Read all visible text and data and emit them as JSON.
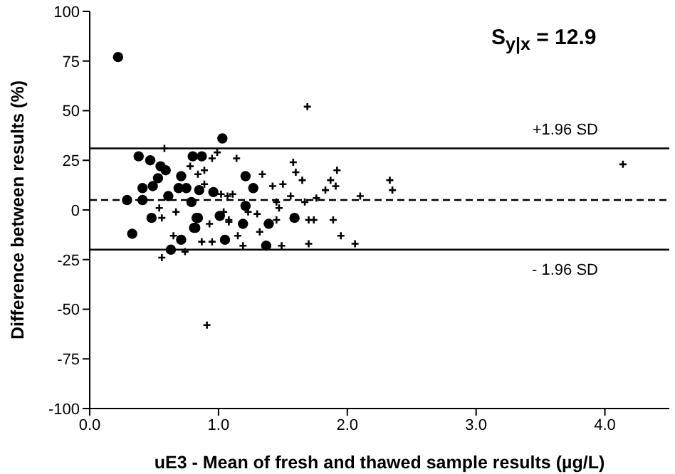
{
  "chart_data": {
    "type": "scatter",
    "xlabel": "uE3 - Mean of fresh and thawed sample results  (µg/L)",
    "ylabel": "Difference between results (%)",
    "annotations": [
      "S$_{y|x}$ = 12.9"
    ],
    "xlim": [
      0,
      4.5
    ],
    "xticks": [
      {
        "value": 0,
        "label": "0.0"
      },
      {
        "value": 1,
        "label": "1.0"
      },
      {
        "value": 2,
        "label": "2.0"
      },
      {
        "value": 3,
        "label": "3.0"
      },
      {
        "value": 4,
        "label": "4.0"
      }
    ],
    "ylim": [
      -100,
      100
    ],
    "yticks": [
      -100,
      -75,
      -50,
      -25,
      0,
      25,
      50,
      75,
      100
    ],
    "ref_lines": [
      {
        "axis": "y",
        "value": 31,
        "label": "+1.96 SD",
        "line_style": "solid",
        "color": "#000000"
      },
      {
        "axis": "y",
        "value": 5,
        "label": null,
        "line_style": "dashed",
        "color": "#000000"
      },
      {
        "axis": "y",
        "value": -20,
        "label": "- 1.96 SD",
        "line_style": "solid",
        "color": "#000000"
      }
    ],
    "series": [
      {
        "color": "#000000",
        "marker": "circle",
        "x": [
          0.22,
          1.03,
          0.38,
          0.47,
          0.55,
          0.59,
          0.53,
          0.49,
          0.41,
          0.41,
          0.29,
          0.61,
          0.8,
          0.87,
          0.71,
          0.69,
          0.75,
          0.79,
          0.85,
          0.96,
          1.21,
          1.27,
          0.48,
          0.84,
          0.82,
          1.01,
          1.21,
          0.33,
          0.63,
          0.71,
          0.81,
          0.83,
          1.05,
          1.19,
          1.39,
          1.37,
          1.59
        ],
        "values": [
          77,
          36,
          27,
          25,
          22,
          20,
          16,
          12,
          11,
          5,
          5,
          7,
          27,
          27,
          17,
          11,
          11,
          4,
          10,
          9,
          17,
          11,
          -4,
          -4,
          -9,
          -3,
          2,
          -12,
          -20,
          -15,
          -9,
          -4,
          -15,
          -7,
          -7,
          -18,
          -4
        ]
      },
      {
        "color": "#000000",
        "marker": "cross",
        "x": [
          1.69,
          0.58,
          0.99,
          0.95,
          1.14,
          1.58,
          1.6,
          1.65,
          1.92,
          1.87,
          1.91,
          1.83,
          2.1,
          0.89,
          0.84,
          0.78,
          1.34,
          1.42,
          1.5,
          1.56,
          1.76,
          1.67,
          1.45,
          1.02,
          1.07,
          1.11,
          0.89,
          0.54,
          0.67,
          1.04,
          1.3,
          1.47,
          1.7,
          1.08,
          0.93,
          0.56,
          0.74,
          0.91,
          0.87,
          0.95,
          1.19,
          1.49,
          1.7,
          2.06,
          1.95,
          1.74,
          1.89,
          0.56,
          0.65,
          1.15,
          1.32,
          1.45,
          1.08,
          1.23,
          4.14,
          2.33,
          2.35
        ],
        "values": [
          52,
          31,
          29,
          26,
          26,
          24,
          19,
          15,
          20,
          15,
          12,
          10,
          7,
          20,
          18,
          22,
          18,
          12,
          13,
          7,
          6,
          4,
          4,
          8,
          7,
          8,
          13,
          1,
          -1,
          -1,
          -2,
          1,
          -5,
          -6,
          -7,
          -24,
          -21,
          -58,
          -16,
          -16,
          -18,
          -18,
          -17,
          -17,
          -13,
          -5,
          -5,
          -4,
          -13,
          -13,
          -11,
          -5,
          -5,
          -1,
          23,
          15,
          10
        ]
      }
    ]
  }
}
